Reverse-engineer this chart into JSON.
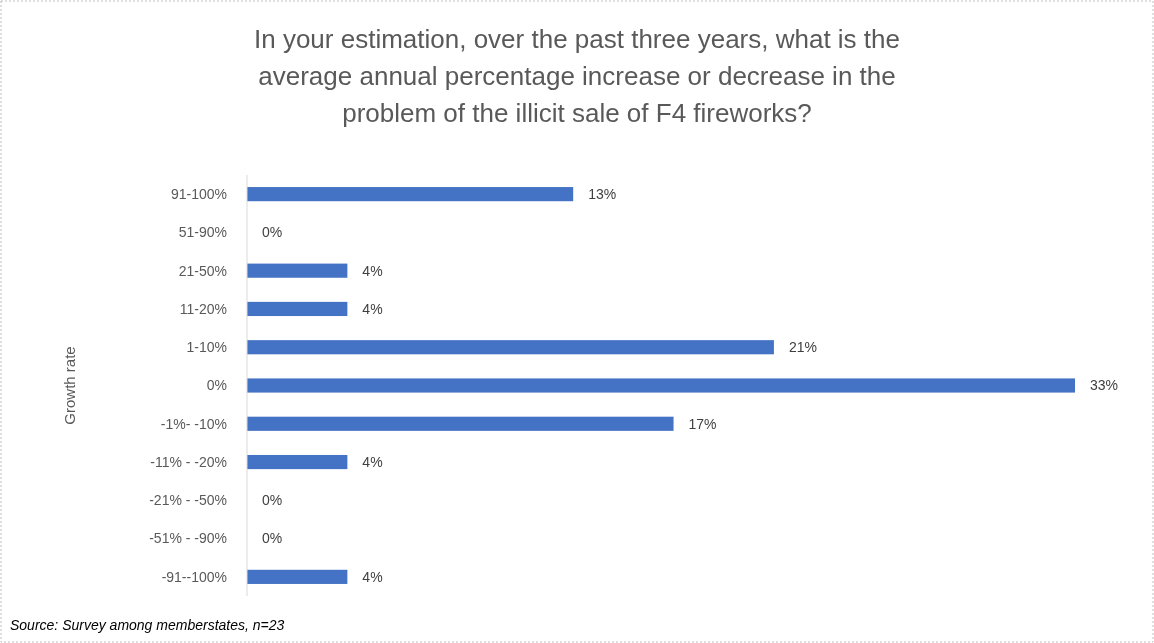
{
  "chart_data": {
    "type": "bar",
    "orientation": "horizontal",
    "title": "In your estimation, over the past three years, what is the average annual percentage increase or decrease in the problem of the illicit sale of F4 fireworks?",
    "ylabel": "Growth rate",
    "categories": [
      "91-100%",
      "51-90%",
      "21-50%",
      "11-20%",
      "1-10%",
      "0%",
      "-1%- -10%",
      "-11% - -20%",
      "-21% - -50%",
      "-51% - -90%",
      "-91--100%"
    ],
    "values": [
      13,
      0,
      4,
      4,
      21,
      33,
      17,
      4,
      0,
      0,
      4
    ],
    "color": "#4472c4",
    "value_labels": [
      "13%",
      "0%",
      "4%",
      "4%",
      "21%",
      "33%",
      "17%",
      "4%",
      "0%",
      "0%",
      "4%"
    ],
    "annotations": [
      "Source: Survey among memberstates, n=23"
    ]
  }
}
